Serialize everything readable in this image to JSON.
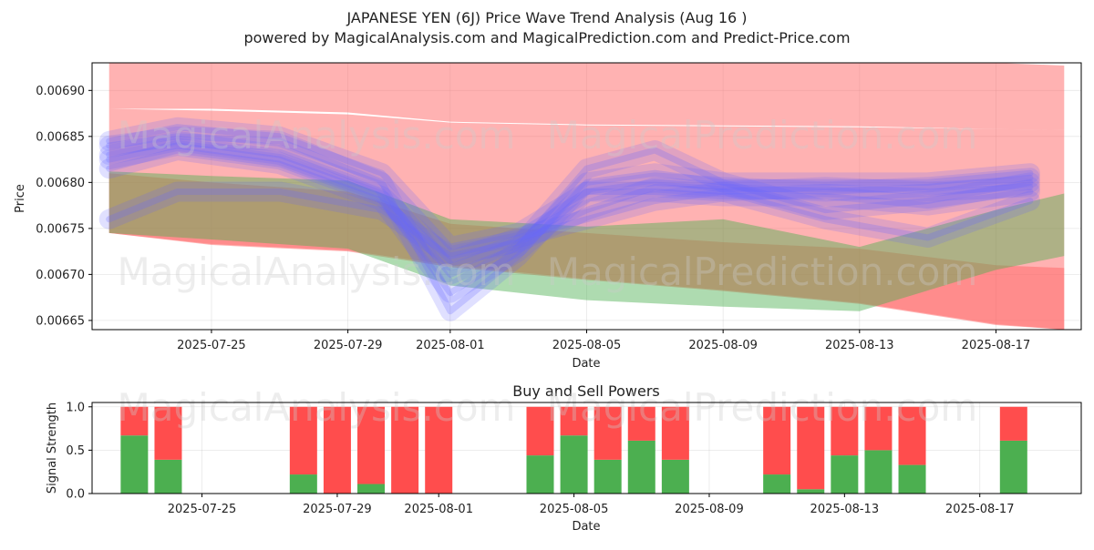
{
  "header": {
    "title": "JAPANESE YEN (6J) Price Wave Trend Analysis (Aug 16 )",
    "subtitle": "powered by MagicalAnalysis.com and MagicalPrediction.com and Predict-Price.com"
  },
  "watermarks": [
    "MagicalAnalysis.com",
    "MagicalPrediction.com"
  ],
  "colors": {
    "red_band": "#ff6666",
    "green_band": "#4caf50",
    "blue_wave": "#6666ff",
    "buy": "#4caf50",
    "sell": "#ff4d4d"
  },
  "chart_data": [
    {
      "type": "area",
      "title": "",
      "xlabel": "Date",
      "ylabel": "Price",
      "x_ticks": [
        "2025-07-25",
        "2025-07-29",
        "2025-08-01",
        "2025-08-05",
        "2025-08-09",
        "2025-08-13",
        "2025-08-17"
      ],
      "y_ticks": [
        "0.00665",
        "0.00670",
        "0.00675",
        "0.00680",
        "0.00685",
        "0.00690"
      ],
      "ylim": [
        0.00664,
        0.00693
      ],
      "xlim": [
        "2025-07-21T12:00",
        "2025-08-19T12:00"
      ],
      "grid": true,
      "bands": [
        {
          "name": "",
          "color": "#ff6666",
          "x": [
            "2025-07-22",
            "2025-07-25",
            "2025-07-29",
            "2025-08-01",
            "2025-08-05",
            "2025-08-09",
            "2025-08-13",
            "2025-08-17",
            "2025-08-19"
          ],
          "upper": [
            0.00688,
            0.006878,
            0.006874,
            0.006865,
            0.006862,
            0.006861,
            0.00686,
            0.006858,
            0.006857
          ],
          "lower": [
            0.006745,
            0.006732,
            0.006725,
            0.006708,
            0.006694,
            0.006682,
            0.006668,
            0.006645,
            0.00664
          ]
        },
        {
          "name": "",
          "color": "#ff6666",
          "x": [
            "2025-07-22",
            "2025-07-25",
            "2025-07-29",
            "2025-08-01",
            "2025-08-05",
            "2025-08-09",
            "2025-08-13",
            "2025-08-17",
            "2025-08-19"
          ],
          "upper": [
            0.00693,
            0.00693,
            0.00693,
            0.00693,
            0.00693,
            0.00693,
            0.00693,
            0.00693,
            0.006927
          ],
          "lower": [
            0.00688,
            0.00688,
            0.006876,
            0.006866,
            0.006863,
            0.006862,
            0.006861,
            0.006858,
            0.006857
          ]
        },
        {
          "name": "",
          "color": "#ff6666",
          "x": [
            "2025-07-22",
            "2025-07-25",
            "2025-07-29",
            "2025-08-01",
            "2025-08-05",
            "2025-08-09",
            "2025-08-13",
            "2025-08-17",
            "2025-08-19"
          ],
          "upper": [
            0.00681,
            0.0068,
            0.00679,
            0.006755,
            0.006745,
            0.006735,
            0.006728,
            0.00671,
            0.006707
          ],
          "lower": [
            0.006745,
            0.006733,
            0.006726,
            0.00671,
            0.006695,
            0.006683,
            0.006669,
            0.006646,
            0.00664
          ]
        },
        {
          "name": "",
          "color": "#4caf50",
          "x": [
            "2025-07-22",
            "2025-07-25",
            "2025-07-29",
            "2025-08-01",
            "2025-08-05",
            "2025-08-09",
            "2025-08-13",
            "2025-08-17",
            "2025-08-19"
          ],
          "upper": [
            0.006812,
            0.006807,
            0.006802,
            0.00676,
            0.006752,
            0.00676,
            0.00673,
            0.00677,
            0.006788
          ],
          "lower": [
            0.006745,
            0.006738,
            0.006728,
            0.006688,
            0.006672,
            0.006665,
            0.00666,
            0.006705,
            0.00672
          ]
        }
      ],
      "waves": [
        {
          "x": [
            "2025-07-22",
            "2025-07-24",
            "2025-07-27",
            "2025-07-30",
            "2025-08-01",
            "2025-08-03",
            "2025-08-05",
            "2025-08-07",
            "2025-08-09",
            "2025-08-12",
            "2025-08-15",
            "2025-08-18"
          ],
          "y": [
            0.006845,
            0.00686,
            0.00685,
            0.00681,
            0.00673,
            0.006745,
            0.00679,
            0.0068,
            0.006795,
            0.00679,
            0.006795,
            0.006805
          ]
        },
        {
          "x": [
            "2025-07-22",
            "2025-07-24",
            "2025-07-27",
            "2025-07-30",
            "2025-08-01",
            "2025-08-03",
            "2025-08-05",
            "2025-08-07",
            "2025-08-09",
            "2025-08-12",
            "2025-08-15",
            "2025-08-18"
          ],
          "y": [
            0.00683,
            0.006845,
            0.00683,
            0.00679,
            0.0067,
            0.00673,
            0.006815,
            0.006835,
            0.0068,
            0.00677,
            0.00678,
            0.0068
          ]
        },
        {
          "x": [
            "2025-07-22",
            "2025-07-24",
            "2025-07-27",
            "2025-07-30",
            "2025-08-01",
            "2025-08-03",
            "2025-08-05",
            "2025-08-07",
            "2025-08-09",
            "2025-08-12",
            "2025-08-15",
            "2025-08-18"
          ],
          "y": [
            0.006815,
            0.006835,
            0.00682,
            0.00678,
            0.00668,
            0.006725,
            0.00679,
            0.00679,
            0.006785,
            0.006785,
            0.006775,
            0.00679
          ]
        },
        {
          "x": [
            "2025-07-22",
            "2025-07-24",
            "2025-07-27",
            "2025-07-30",
            "2025-08-01",
            "2025-08-03",
            "2025-08-05",
            "2025-08-07",
            "2025-08-09",
            "2025-08-12",
            "2025-08-15",
            "2025-08-18"
          ],
          "y": [
            0.00676,
            0.00679,
            0.00679,
            0.00677,
            0.00672,
            0.006735,
            0.00677,
            0.006795,
            0.00679,
            0.00676,
            0.00674,
            0.00678
          ]
        },
        {
          "x": [
            "2025-07-22",
            "2025-07-24",
            "2025-07-27",
            "2025-07-30",
            "2025-08-01",
            "2025-08-03",
            "2025-08-05",
            "2025-08-07",
            "2025-08-09",
            "2025-08-12",
            "2025-08-15",
            "2025-08-18"
          ],
          "y": [
            0.00684,
            0.00685,
            0.006845,
            0.0068,
            0.00666,
            0.00672,
            0.0068,
            0.00681,
            0.0068,
            0.0068,
            0.0068,
            0.00681
          ]
        },
        {
          "x": [
            "2025-07-22",
            "2025-07-24",
            "2025-07-27",
            "2025-07-30",
            "2025-08-01",
            "2025-08-03",
            "2025-08-05",
            "2025-08-07",
            "2025-08-09",
            "2025-08-12",
            "2025-08-15",
            "2025-08-18"
          ],
          "y": [
            0.006825,
            0.00684,
            0.006825,
            0.006785,
            0.006715,
            0.00674,
            0.00676,
            0.00678,
            0.00679,
            0.006795,
            0.00679,
            0.006795
          ]
        }
      ]
    },
    {
      "type": "bar",
      "title": "Buy and Sell Powers",
      "xlabel": "Date",
      "ylabel": "Signal Strength",
      "x_ticks": [
        "2025-07-25",
        "2025-07-29",
        "2025-08-01",
        "2025-08-05",
        "2025-08-09",
        "2025-08-13",
        "2025-08-17"
      ],
      "y_ticks": [
        "0.0",
        "0.5",
        "1.0"
      ],
      "ylim": [
        0,
        1.05
      ],
      "categories": [
        "2025-07-23",
        "2025-07-24",
        "2025-07-28",
        "2025-07-29",
        "2025-07-30",
        "2025-07-31",
        "2025-08-01",
        "2025-08-04",
        "2025-08-05",
        "2025-08-06",
        "2025-08-07",
        "2025-08-08",
        "2025-08-11",
        "2025-08-12",
        "2025-08-13",
        "2025-08-14",
        "2025-08-15",
        "2025-08-18"
      ],
      "series": [
        {
          "name": "",
          "color": "#4caf50",
          "values": [
            0.67,
            0.39,
            0.22,
            0.0,
            0.11,
            0.0,
            0.0,
            0.44,
            0.67,
            0.39,
            0.61,
            0.39,
            0.22,
            0.05,
            0.44,
            0.5,
            0.33,
            0.61
          ]
        },
        {
          "name": "",
          "color": "#ff4d4d",
          "values": [
            0.33,
            0.61,
            0.78,
            1.0,
            0.89,
            1.0,
            1.0,
            0.56,
            0.33,
            0.61,
            0.39,
            0.61,
            0.78,
            0.95,
            0.56,
            0.5,
            0.67,
            0.39
          ]
        }
      ]
    }
  ]
}
